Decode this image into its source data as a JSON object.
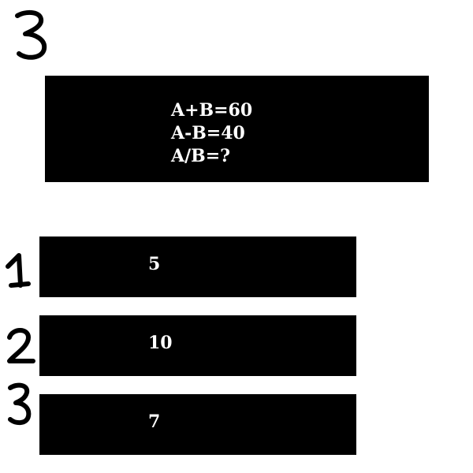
{
  "question": {
    "number": "3",
    "lines": [
      "A+B=60",
      "A-B=40",
      "A/B=?"
    ]
  },
  "options": [
    {
      "number": "1",
      "value": "5"
    },
    {
      "number": "2",
      "value": "10"
    },
    {
      "number": "3",
      "value": "7"
    }
  ],
  "colors": {
    "box_background": "#000000",
    "text": "#ffffff",
    "handwriting": "#000000",
    "page_background": "#ffffff"
  }
}
